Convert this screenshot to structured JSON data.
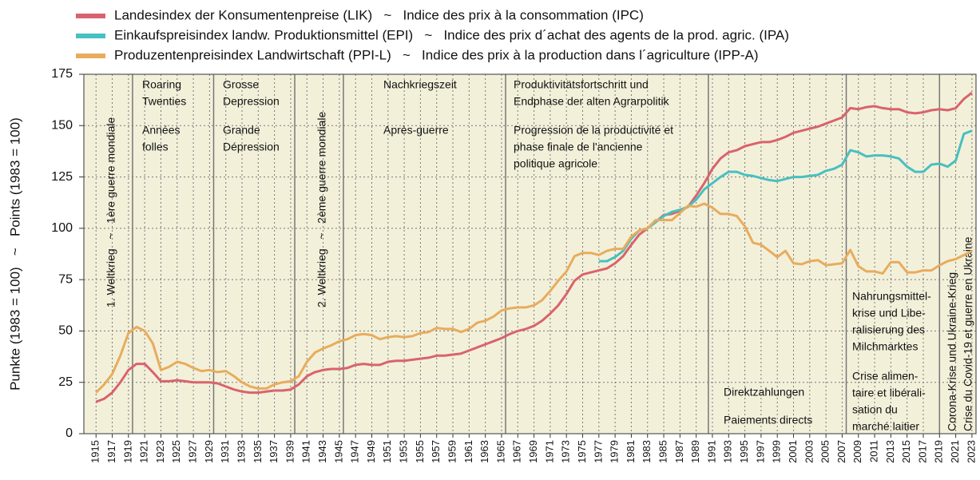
{
  "chart_data": {
    "type": "line",
    "y_label": "Punkte (1983 = 100)   ~   Points (1983 = 100)",
    "x": [
      1915,
      1916,
      1917,
      1918,
      1919,
      1920,
      1921,
      1922,
      1923,
      1924,
      1925,
      1926,
      1927,
      1928,
      1929,
      1930,
      1931,
      1932,
      1933,
      1934,
      1935,
      1936,
      1937,
      1938,
      1939,
      1940,
      1941,
      1942,
      1943,
      1944,
      1945,
      1946,
      1947,
      1948,
      1949,
      1950,
      1951,
      1952,
      1953,
      1954,
      1955,
      1956,
      1957,
      1958,
      1959,
      1960,
      1961,
      1962,
      1963,
      1964,
      1965,
      1966,
      1967,
      1968,
      1969,
      1970,
      1971,
      1972,
      1973,
      1974,
      1975,
      1976,
      1977,
      1978,
      1979,
      1980,
      1981,
      1982,
      1983,
      1984,
      1985,
      1986,
      1987,
      1988,
      1989,
      1990,
      1991,
      1992,
      1993,
      1994,
      1995,
      1996,
      1997,
      1998,
      1999,
      2000,
      2001,
      2002,
      2003,
      2004,
      2005,
      2006,
      2007,
      2008,
      2009,
      2010,
      2011,
      2012,
      2013,
      2014,
      2015,
      2016,
      2017,
      2018,
      2019,
      2020,
      2021,
      2022,
      2023
    ],
    "series": [
      {
        "name": "Landesindex der Konsumentenpreise (LIK)   ~   Indice des prix à la consommation (IPC)",
        "color": "#d9636c",
        "values": [
          15.5,
          17,
          20,
          25,
          31,
          34,
          34,
          30,
          25.5,
          25.5,
          26,
          25.5,
          25,
          25,
          25,
          24.5,
          23,
          21.5,
          20.5,
          20,
          20,
          20.5,
          21,
          21,
          21.5,
          24,
          28,
          30,
          31,
          31.5,
          31.5,
          32,
          33.5,
          34,
          33.5,
          33.5,
          35,
          35.5,
          35.5,
          36,
          36.5,
          37,
          38,
          38,
          38.5,
          39,
          40.5,
          42,
          43.5,
          45,
          46.5,
          48.5,
          50,
          51,
          52.5,
          55,
          58.5,
          62.5,
          68,
          74.5,
          77.5,
          78.5,
          79.5,
          80.5,
          83,
          86.5,
          92,
          97,
          100,
          103,
          106.5,
          107,
          108.5,
          110.5,
          116,
          122,
          129,
          134,
          137,
          138,
          140,
          141,
          142,
          142,
          143,
          144.5,
          146.5,
          147.5,
          148.5,
          149.5,
          151,
          152.5,
          154,
          158.5,
          158,
          159,
          159.5,
          158.5,
          158,
          158,
          156.5,
          156,
          156.5,
          157.5,
          158,
          157.5,
          158.5,
          163,
          166
        ]
      },
      {
        "name": "Einkaufspreisindex landw. Produktionsmittel (EPI)   ~   Indice des prix d´achat des agents de la prod. agric. (IPA)",
        "color": "#47c0c0",
        "values": [
          null,
          null,
          null,
          null,
          null,
          null,
          null,
          null,
          null,
          null,
          null,
          null,
          null,
          null,
          null,
          null,
          null,
          null,
          null,
          null,
          null,
          null,
          null,
          null,
          null,
          null,
          null,
          null,
          null,
          null,
          null,
          null,
          null,
          null,
          null,
          null,
          null,
          null,
          null,
          null,
          null,
          null,
          null,
          null,
          null,
          null,
          null,
          null,
          null,
          null,
          null,
          null,
          null,
          null,
          null,
          null,
          null,
          null,
          null,
          null,
          null,
          null,
          84,
          84,
          86,
          89,
          95,
          99,
          100,
          103,
          106,
          108,
          109,
          110.5,
          114,
          119,
          122,
          125,
          127.5,
          127.5,
          126,
          125.5,
          124.5,
          123.5,
          123,
          124,
          125,
          125,
          125.5,
          126,
          128,
          129,
          131,
          138,
          137,
          135,
          135.5,
          135.5,
          135,
          134,
          130,
          127.5,
          127.5,
          131,
          131.5,
          130,
          133,
          146,
          147.5
        ]
      },
      {
        "name": "Produzentenpreisindex Landwirtschaft (PPI-L)   ~   Indice des prix à la production dans l´agriculture (IPP-A)",
        "color": "#e8ac5c",
        "values": [
          20,
          24,
          29,
          38,
          49,
          52,
          50,
          44,
          31,
          32.5,
          35,
          34,
          32,
          30.5,
          31,
          30,
          30.5,
          28,
          25,
          23,
          22,
          22,
          24,
          25,
          25.5,
          28,
          35,
          39.5,
          41.5,
          43,
          45,
          46,
          48,
          48.5,
          48,
          46,
          47,
          47.5,
          47,
          47.5,
          49,
          49.5,
          51.5,
          51,
          51,
          49.5,
          51,
          54,
          55,
          57,
          60,
          61,
          61.5,
          61.5,
          62.5,
          65,
          69.5,
          74.5,
          79,
          86.5,
          88,
          88,
          87,
          89,
          90,
          90,
          96,
          99,
          100,
          104,
          104,
          104,
          107.5,
          111,
          110.5,
          112,
          110,
          107,
          107,
          106,
          101,
          93,
          92,
          89,
          86,
          89,
          83,
          82.5,
          84,
          84.5,
          82,
          82.5,
          83,
          89.5,
          81.5,
          79,
          79,
          78,
          83.5,
          83.5,
          78.5,
          78.5,
          79.5,
          79.5,
          82,
          84,
          85,
          87,
          89
        ]
      }
    ],
    "xlim": [
      1913.5,
      2023.5
    ],
    "xticks": [
      1915,
      1917,
      1919,
      1921,
      1923,
      1925,
      1927,
      1929,
      1931,
      1933,
      1935,
      1937,
      1939,
      1941,
      1943,
      1945,
      1947,
      1949,
      1951,
      1953,
      1955,
      1957,
      1959,
      1961,
      1963,
      1965,
      1967,
      1969,
      1971,
      1973,
      1975,
      1977,
      1979,
      1981,
      1983,
      1985,
      1987,
      1989,
      1991,
      1993,
      1995,
      1997,
      1999,
      2001,
      2003,
      2005,
      2007,
      2009,
      2011,
      2013,
      2015,
      2017,
      2019,
      2021,
      2023
    ],
    "ylim": [
      0,
      175
    ],
    "yticks": [
      0,
      25,
      50,
      75,
      100,
      125,
      150,
      175
    ],
    "grid": true,
    "periods": [
      1919.5,
      1929.5,
      1939.5,
      1945.5,
      1965.5,
      1990.5,
      2007.5,
      2019
    ],
    "annotations": [
      {
        "lines": [
          "1. Weltkrieg   ~   1ère guerre mondiale"
        ]
      },
      {
        "lines": [
          "Roaring",
          "Twenties"
        ]
      },
      {
        "lines": [
          "Années",
          "folles"
        ]
      },
      {
        "lines": [
          "Grosse",
          "Depression"
        ]
      },
      {
        "lines": [
          "Grande",
          "Dépression"
        ]
      },
      {
        "lines": [
          "2. Weltkrieg   ~   2ème guerre mondiale"
        ]
      },
      {
        "lines": [
          "Nachkriegszeit"
        ]
      },
      {
        "lines": [
          "Après-guerre"
        ]
      },
      {
        "lines": [
          "Produktivitätsfortschritt und",
          "Endphase der alten Agrarpolitik"
        ]
      },
      {
        "lines": [
          "Progression de la productivité et",
          "phase finale de l'ancienne",
          "politique agricole"
        ]
      },
      {
        "lines": [
          "Direktzahlungen"
        ]
      },
      {
        "lines": [
          "Paiements directs"
        ]
      },
      {
        "lines": [
          "Nahrungsmittel-",
          "krise und Libe-",
          "ralisierung des",
          "Milchmarktes"
        ]
      },
      {
        "lines": [
          "Crise alimen-",
          "taire et libérali-",
          "sation du",
          "marché laitier"
        ]
      },
      {
        "lines": [
          "Corona-Krise und Ukraine-Krieg"
        ]
      },
      {
        "lines": [
          "Crise du Covid-19 et guerre en Ukraine"
        ]
      }
    ]
  }
}
